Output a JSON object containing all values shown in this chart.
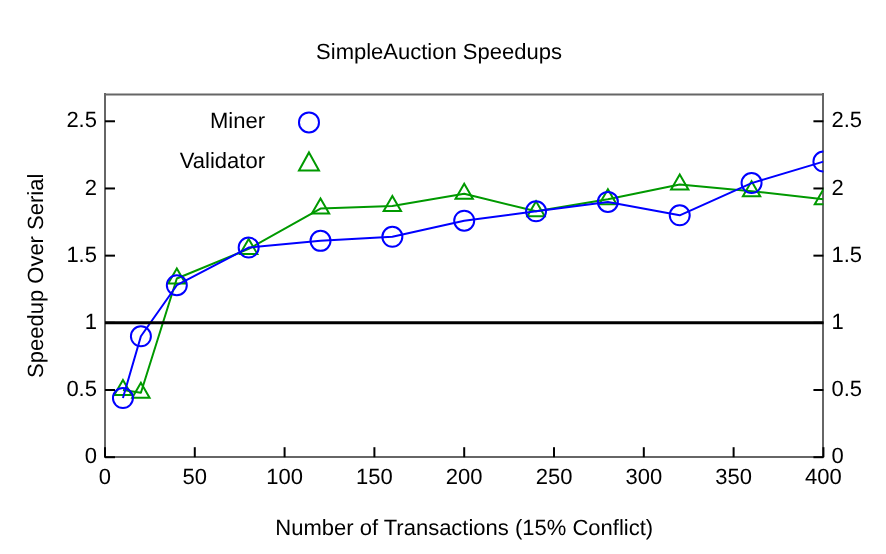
{
  "chart_data": {
    "type": "line",
    "title": "SimpleAuction Speedups",
    "xlabel": "Number of Transactions (15% Conflict)",
    "ylabel": "Speedup Over Serial",
    "x": [
      10,
      20,
      40,
      80,
      120,
      160,
      200,
      240,
      280,
      320,
      360,
      400
    ],
    "series": [
      {
        "name": "Miner",
        "color": "#0000ff",
        "marker": "circle",
        "values": [
          0.44,
          0.9,
          1.28,
          1.56,
          1.61,
          1.64,
          1.76,
          1.83,
          1.9,
          1.8,
          2.04,
          2.2
        ]
      },
      {
        "name": "Validator",
        "color": "#009900",
        "marker": "triangle",
        "values": [
          0.5,
          0.48,
          1.33,
          1.55,
          1.85,
          1.87,
          1.96,
          1.83,
          1.92,
          2.03,
          1.98,
          1.92
        ]
      }
    ],
    "xlim": [
      0,
      400
    ],
    "xticks": [
      0,
      50,
      100,
      150,
      200,
      250,
      300,
      350,
      400
    ],
    "ylim": [
      0,
      2.7
    ],
    "yticks": [
      0,
      0.5,
      1,
      1.5,
      2,
      2.5
    ],
    "y2lim": [
      0,
      2.7
    ],
    "y2ticks": [
      0,
      0.5,
      1,
      1.5,
      2,
      2.5
    ],
    "ref_lines": [
      {
        "axis": "y",
        "value": 1,
        "color": "#000000"
      }
    ],
    "legend": "top left",
    "grid": false
  }
}
